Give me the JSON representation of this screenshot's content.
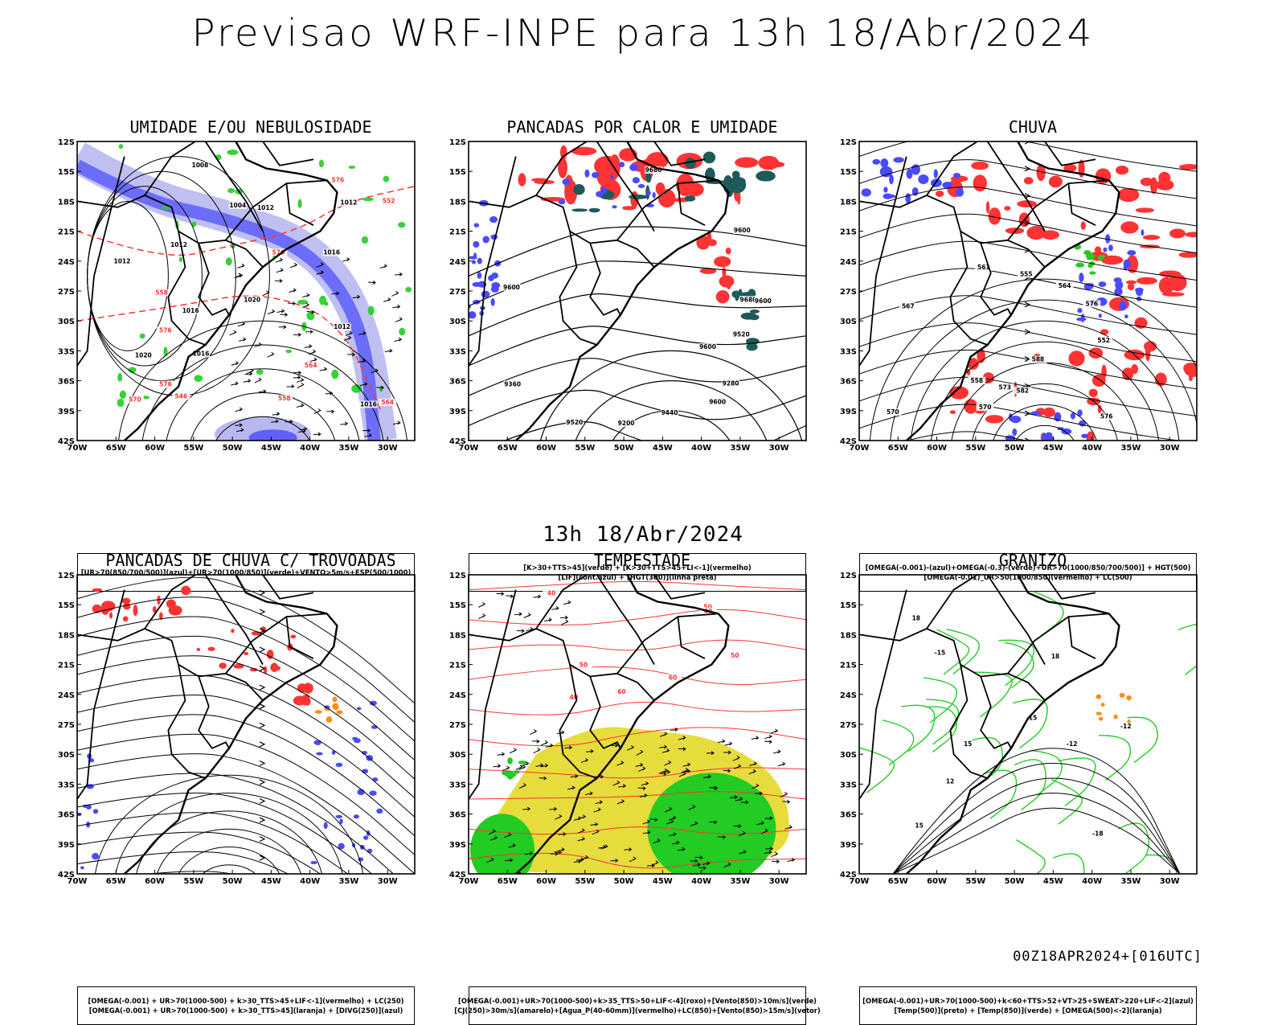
{
  "title": "Previsao WRF-INPE  para 13h 18/Abr/2024",
  "mid_title": "13h 18/Abr/2024",
  "footer": "00Z18APR2024+[016UTC]",
  "axes": {
    "lat_labels": [
      "12S",
      "15S",
      "18S",
      "21S",
      "24S",
      "27S",
      "30S",
      "33S",
      "36S",
      "39S",
      "42S"
    ],
    "lon_labels": [
      "70W",
      "65W",
      "60W",
      "55W",
      "50W",
      "45W",
      "40W",
      "35W",
      "30W"
    ]
  },
  "colors": {
    "blue": "#4a4aff",
    "green": "#22cc22",
    "red": "#ff3333",
    "teal": "#1f5a5a",
    "yellow": "#e6dc3c",
    "orange": "#ff8c1a",
    "lavender": "#b8b8f0"
  },
  "panels": [
    {
      "title": "UMIDADE E/OU NEBULOSIDADE",
      "legend_lines": [
        "[UR>70(850/700/500)](azul)+[UR>70(1000/850)](verde)+VENTO>5m/s+ESP(500/1000)"
      ],
      "contour_labels": [
        "1012",
        "1012",
        "1012",
        "1016",
        "1016",
        "1020",
        "1020",
        "1016",
        "1012",
        "1008",
        "1004",
        "1016",
        "1012"
      ],
      "red_labels": [
        "576",
        "576",
        "576",
        "576",
        "570",
        "564",
        "558",
        "552",
        "546",
        "564",
        "558"
      ]
    },
    {
      "title": "PANCADAS POR CALOR E UMIDADE",
      "legend_lines": [
        "[K>30+TTS>45](verde) + [K>30+TTS>45+LI<-1](vermelho)",
        "[LIF](cont.azul) + [HGT(300)](linha preta)"
      ],
      "contour_labels": [
        "9680",
        "9600",
        "9680",
        "9600",
        "9600",
        "9520",
        "9440",
        "9360",
        "9280",
        "9200",
        "9520",
        "9600",
        "9600"
      ]
    },
    {
      "title": "CHUVA",
      "legend_lines": [
        "[OMEGA(-0.001)-(azul)+OMEGA(-0.3)-(verde)+UR>70(1000/850/700/500)] + HGT(500)",
        "[OMEGA(-0.01)_UR>50(1000/850)(vermelho) + LC(500)"
      ],
      "contour_labels": [
        "588",
        "582",
        "576",
        "573",
        "570",
        "567",
        "564",
        "561",
        "558",
        "555",
        "552",
        "576",
        "570"
      ]
    },
    {
      "title": "PANCADAS DE CHUVA C/ TROVOADAS",
      "legend_lines": [
        "[OMEGA(-0.001) + UR>70(1000-500) + k>30_TTS>45+LIF<-1](vermelho) + LC(250)",
        "[OMEGA(-0.001) + UR>70(1000-500) + k>30_TTS>45](laranja) + [DIVG(250)](azul)"
      ]
    },
    {
      "title": "TEMPESTADE",
      "legend_lines": [
        "[OMEGA(-0.001)+UR>70(1000-500)+k>35_TTS>50+LIF<-4](roxo)+[Vento(850)>10m/s](verde)",
        "[CJ(250)>30m/s](amarelo)+[Agua_P(40-60mm)](vermelho)+LC(850)+[Vento(850)>15m/s](vetor)"
      ],
      "contour_labels": [
        "50",
        "60",
        "40",
        "50",
        "40",
        "60",
        "40",
        "50"
      ]
    },
    {
      "title": "GRANIZO",
      "legend_lines": [
        "[OMEGA(-0.001)+UR>70(1000-500)+k<60+TTS>52+VT>25+SWEAT>220+LIF<-2](azul)",
        "[Temp(500)](preto) + [Temp(850)](verde) + [OMEGA(500)<-2](laranja)"
      ],
      "contour_labels": [
        "-15",
        "-18",
        "-12",
        "-12",
        "15",
        "18",
        "15",
        "18",
        "15",
        "12"
      ]
    }
  ]
}
